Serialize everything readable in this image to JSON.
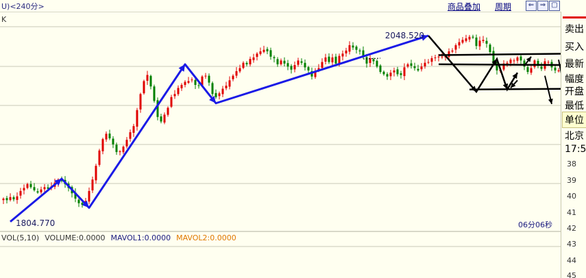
{
  "header": {
    "title": "U)<240分>",
    "menu_overlay": "商品叠加",
    "menu_cycle": "周期",
    "nav_left": "⇐",
    "nav_right": "⇒",
    "nav_box": "▢"
  },
  "chart_label": "K",
  "right_panel": {
    "items": [
      "卖出",
      "买入",
      "最新",
      "幅度",
      "开盘",
      "最低",
      "单位",
      "北京",
      "17:5"
    ],
    "numbers": [
      "38",
      "39",
      "40",
      "41",
      "42",
      "43",
      "44",
      "45"
    ]
  },
  "volume_legend": {
    "vol": "VOL(5,10)",
    "volume": "VOLUME:0.0000",
    "mavol1": "MAVOL1:0.0000",
    "mavol2": "MAVOL2:0.0000"
  },
  "timer": "06分06秒",
  "colors": {
    "up": "#e00000",
    "down": "#008000",
    "trend_blue": "#1a1ae6",
    "mavol1": "#1a1a80",
    "mavol2": "#e07800",
    "grid": "#c8c8b8"
  },
  "chart_data": {
    "type": "candlestick",
    "annotations": {
      "high_label": "2048.520",
      "low_label": "1804.770",
      "high_value": 2048.52,
      "low_value": 1804.77
    },
    "y_range": [
      1792,
      2080
    ],
    "close": [
      1835,
      1833,
      1837,
      1834,
      1838,
      1845,
      1849,
      1854,
      1850,
      1846,
      1843,
      1847,
      1850,
      1848,
      1851,
      1856,
      1860,
      1858,
      1854,
      1849,
      1842,
      1835,
      1829,
      1827,
      1832,
      1845,
      1860,
      1878,
      1898,
      1913,
      1920,
      1914,
      1906,
      1896,
      1897,
      1903,
      1912,
      1922,
      1930,
      1951,
      1972,
      1989,
      1997,
      1982,
      1963,
      1942,
      1936,
      1945,
      1954,
      1968,
      1972,
      1980,
      1984,
      1988,
      1989,
      1991,
      1984,
      1983,
      1995,
      1996,
      1987,
      1972,
      1968,
      1973,
      1979,
      1983,
      1990,
      1996,
      2002,
      2006,
      2013,
      2011,
      2018,
      2020,
      2025,
      2028,
      2030,
      2028,
      2021,
      2019,
      2011,
      2016,
      2012,
      2008,
      2004,
      2010,
      2016,
      2013,
      2007,
      2003,
      1995,
      2002,
      2006,
      2014,
      2020,
      2014,
      2020,
      2012,
      2022,
      2025,
      2029,
      2036,
      2033,
      2030,
      2028,
      2020,
      2012,
      2019,
      2015,
      2008,
      2001,
      1998,
      1995,
      2000,
      2003,
      1998,
      1997,
      2007,
      2011,
      2009,
      2006,
      2003,
      2008,
      2013,
      2014,
      2019,
      2020,
      2021,
      2021,
      2022,
      2028,
      2029,
      2036,
      2040,
      2043,
      2045,
      2047,
      2046,
      2035,
      2042,
      2043,
      2038,
      2027,
      2012,
      2003,
      2004,
      2012,
      2013,
      2017,
      2016,
      2020,
      2016,
      2008,
      2001,
      2006,
      2016,
      2009,
      2005,
      2015,
      2014,
      2007,
      2003,
      2003,
      2008,
      2002
    ]
  }
}
